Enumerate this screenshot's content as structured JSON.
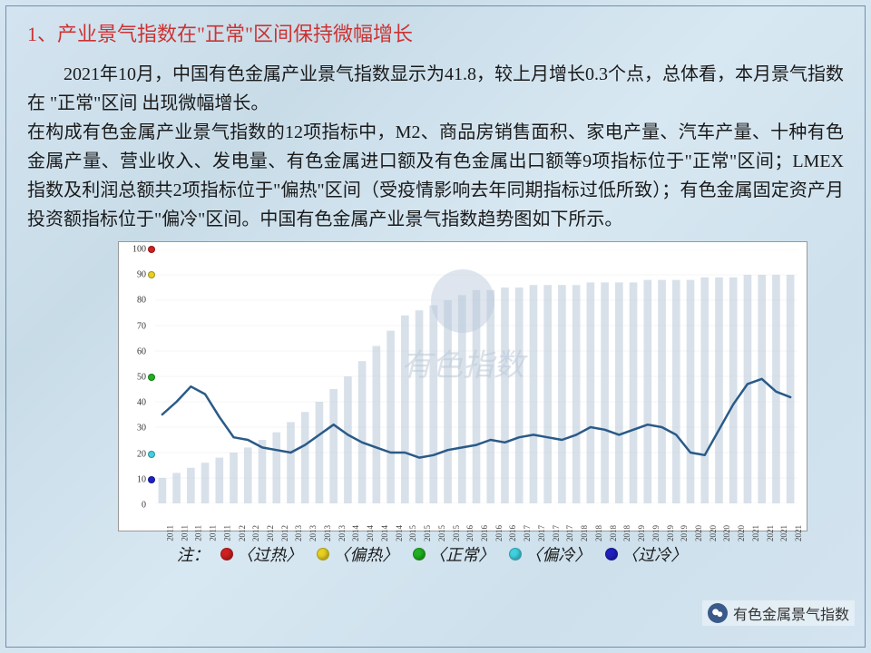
{
  "title": "1、产业景气指数在\"正常\"区间保持微幅增长",
  "para1": "2021年10月，中国有色金属产业景气指数显示为41.8，较上月增长0.3个点，总体看，本月景气指数在 \"正常\"区间 出现微幅增长。",
  "para2": "在构成有色金属产业景气指数的12项指标中，M2、商品房销售面积、家电产量、汽车产量、十种有色金属产量、营业收入、发电量、有色金属进口额及有色金属出口额等9项指标位于\"正常\"区间；LMEX指数及利润总额共2项指标位于\"偏热\"区间（受疫情影响去年同期指标过低所致）；有色金属固定资产月投资额指标位于\"偏冷\"区间。中国有色金属产业景气指数趋势图如下所示。",
  "watermark_text": "有色指数",
  "chart": {
    "type": "line_with_bars",
    "ylim": [
      0,
      100
    ],
    "yticks": [
      0,
      10,
      20,
      30,
      40,
      50,
      60,
      70,
      80,
      90,
      100
    ],
    "y_markers": [
      {
        "value": 100,
        "color": "#d02020"
      },
      {
        "value": 90,
        "color": "#e8d020"
      },
      {
        "value": 50,
        "color": "#20b020"
      },
      {
        "value": 20,
        "color": "#40d0e0"
      },
      {
        "value": 10,
        "color": "#2020c0"
      }
    ],
    "years": [
      "2011",
      "2011",
      "2011",
      "2011",
      "2011",
      "2012",
      "2012",
      "2012",
      "2012",
      "2013",
      "2013",
      "2013",
      "2013",
      "2014",
      "2014",
      "2014",
      "2014",
      "2015",
      "2015",
      "2015",
      "2015",
      "2016",
      "2016",
      "2016",
      "2016",
      "2017",
      "2017",
      "2017",
      "2017",
      "2018",
      "2018",
      "2018",
      "2018",
      "2019",
      "2019",
      "2019",
      "2019",
      "2020",
      "2020",
      "2020",
      "2020",
      "2021",
      "2021",
      "2021",
      "2021"
    ],
    "line_values": [
      35,
      40,
      46,
      43,
      34,
      26,
      25,
      22,
      21,
      20,
      23,
      27,
      31,
      27,
      24,
      22,
      20,
      20,
      18,
      19,
      21,
      22,
      23,
      25,
      24,
      26,
      27,
      26,
      25,
      27,
      30,
      29,
      27,
      29,
      31,
      30,
      27,
      20,
      19,
      29,
      39,
      47,
      49,
      44,
      41.8
    ],
    "bar_values": [
      10,
      12,
      14,
      16,
      18,
      20,
      22,
      25,
      28,
      32,
      36,
      40,
      45,
      50,
      56,
      62,
      68,
      74,
      76,
      78,
      80,
      82,
      84,
      84,
      85,
      85,
      86,
      86,
      86,
      86,
      87,
      87,
      87,
      87,
      88,
      88,
      88,
      88,
      89,
      89,
      89,
      90,
      90,
      90,
      90
    ],
    "line_color": "#2a5a88",
    "line_width": 2.5,
    "bar_color": "#b8c8d8",
    "bar_opacity": 0.55,
    "background_color": "#ffffff",
    "grid_color": "#d8d8d8",
    "label_fontsize": 9
  },
  "legend": {
    "note": "注：",
    "items": [
      {
        "label": "〈过热〉",
        "color": "#d02020"
      },
      {
        "label": "〈偏热〉",
        "color": "#e8d020"
      },
      {
        "label": "〈正常〉",
        "color": "#20b020"
      },
      {
        "label": "〈偏冷〉",
        "color": "#40d0e0"
      },
      {
        "label": "〈过冷〉",
        "color": "#2020c0"
      }
    ]
  },
  "source": "有色金属景气指数"
}
